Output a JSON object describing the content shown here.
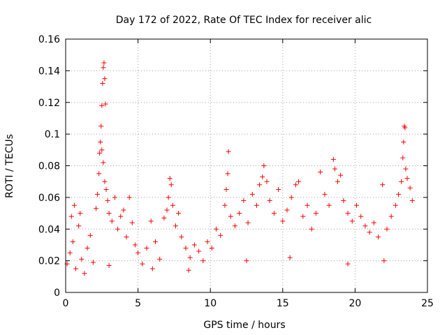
{
  "chart_data": {
    "type": "scatter",
    "title": "Day 172 of 2022, Rate Of TEC Index for receiver alic",
    "xlabel": "GPS time / hours",
    "ylabel": "ROTI / TECUs",
    "xlim": [
      0,
      25
    ],
    "ylim": [
      0,
      0.16
    ],
    "xticks": [
      0,
      5,
      10,
      15,
      20,
      25
    ],
    "xtick_labels": [
      "0",
      "5",
      "10",
      "15",
      "20",
      "25"
    ],
    "yticks": [
      0,
      0.02,
      0.04,
      0.06,
      0.08,
      0.1,
      0.12,
      0.14,
      0.16
    ],
    "ytick_labels": [
      "0",
      "0.02",
      "0.04",
      "0.06",
      "0.08",
      "0.1",
      "0.12",
      "0.14",
      "0.16"
    ],
    "grid": true,
    "marker": "+",
    "color": "#ff0000",
    "series": [
      {
        "name": "ROTI",
        "points": [
          [
            0.1,
            0.018
          ],
          [
            0.3,
            0.025
          ],
          [
            0.5,
            0.032
          ],
          [
            0.7,
            0.015
          ],
          [
            0.9,
            0.042
          ],
          [
            1.1,
            0.021
          ],
          [
            1.3,
            0.012
          ],
          [
            1.5,
            0.028
          ],
          [
            0.4,
            0.048
          ],
          [
            0.6,
            0.055
          ],
          [
            1.0,
            0.05
          ],
          [
            1.7,
            0.036
          ],
          [
            1.9,
            0.019
          ],
          [
            2.1,
            0.053
          ],
          [
            2.2,
            0.062
          ],
          [
            2.3,
            0.075
          ],
          [
            2.35,
            0.088
          ],
          [
            2.4,
            0.095
          ],
          [
            2.45,
            0.105
          ],
          [
            2.5,
            0.118
          ],
          [
            2.55,
            0.132
          ],
          [
            2.6,
            0.142
          ],
          [
            2.65,
            0.145
          ],
          [
            2.7,
            0.135
          ],
          [
            2.75,
            0.119
          ],
          [
            2.5,
            0.09
          ],
          [
            2.6,
            0.082
          ],
          [
            2.7,
            0.07
          ],
          [
            2.8,
            0.065
          ],
          [
            2.9,
            0.058
          ],
          [
            3.0,
            0.05
          ],
          [
            3.2,
            0.045
          ],
          [
            3.4,
            0.06
          ],
          [
            3.6,
            0.04
          ],
          [
            3.8,
            0.048
          ],
          [
            4.0,
            0.052
          ],
          [
            4.2,
            0.035
          ],
          [
            4.4,
            0.06
          ],
          [
            4.6,
            0.044
          ],
          [
            4.8,
            0.03
          ],
          [
            5.0,
            0.025
          ],
          [
            5.3,
            0.018
          ],
          [
            5.6,
            0.028
          ],
          [
            5.9,
            0.045
          ],
          [
            6.2,
            0.032
          ],
          [
            6.5,
            0.021
          ],
          [
            6.8,
            0.047
          ],
          [
            7.0,
            0.052
          ],
          [
            7.1,
            0.06
          ],
          [
            7.2,
            0.072
          ],
          [
            7.3,
            0.068
          ],
          [
            7.4,
            0.055
          ],
          [
            7.6,
            0.042
          ],
          [
            7.8,
            0.05
          ],
          [
            8.0,
            0.035
          ],
          [
            8.3,
            0.028
          ],
          [
            8.6,
            0.022
          ],
          [
            8.9,
            0.03
          ],
          [
            9.2,
            0.026
          ],
          [
            9.5,
            0.02
          ],
          [
            9.8,
            0.032
          ],
          [
            10.1,
            0.028
          ],
          [
            10.4,
            0.04
          ],
          [
            10.7,
            0.036
          ],
          [
            11.0,
            0.055
          ],
          [
            11.1,
            0.065
          ],
          [
            11.2,
            0.075
          ],
          [
            11.25,
            0.089
          ],
          [
            11.4,
            0.048
          ],
          [
            11.7,
            0.042
          ],
          [
            12.0,
            0.05
          ],
          [
            12.3,
            0.058
          ],
          [
            12.6,
            0.044
          ],
          [
            12.9,
            0.062
          ],
          [
            13.2,
            0.055
          ],
          [
            13.4,
            0.068
          ],
          [
            13.6,
            0.073
          ],
          [
            13.7,
            0.08
          ],
          [
            13.9,
            0.07
          ],
          [
            14.1,
            0.058
          ],
          [
            14.4,
            0.05
          ],
          [
            14.7,
            0.065
          ],
          [
            15.0,
            0.045
          ],
          [
            15.3,
            0.052
          ],
          [
            15.6,
            0.06
          ],
          [
            15.9,
            0.068
          ],
          [
            16.1,
            0.07
          ],
          [
            16.4,
            0.048
          ],
          [
            16.7,
            0.055
          ],
          [
            17.0,
            0.04
          ],
          [
            17.3,
            0.05
          ],
          [
            17.6,
            0.076
          ],
          [
            17.9,
            0.062
          ],
          [
            18.2,
            0.055
          ],
          [
            18.5,
            0.084
          ],
          [
            18.6,
            0.078
          ],
          [
            18.8,
            0.07
          ],
          [
            19.0,
            0.074
          ],
          [
            19.2,
            0.058
          ],
          [
            19.5,
            0.05
          ],
          [
            19.8,
            0.045
          ],
          [
            20.1,
            0.055
          ],
          [
            20.4,
            0.048
          ],
          [
            20.7,
            0.042
          ],
          [
            21.0,
            0.038
          ],
          [
            21.3,
            0.044
          ],
          [
            21.6,
            0.035
          ],
          [
            21.9,
            0.068
          ],
          [
            22.2,
            0.04
          ],
          [
            22.5,
            0.048
          ],
          [
            22.8,
            0.055
          ],
          [
            23.0,
            0.062
          ],
          [
            23.2,
            0.07
          ],
          [
            23.3,
            0.085
          ],
          [
            23.35,
            0.095
          ],
          [
            23.4,
            0.105
          ],
          [
            23.45,
            0.104
          ],
          [
            23.5,
            0.078
          ],
          [
            23.6,
            0.072
          ],
          [
            23.8,
            0.066
          ],
          [
            23.95,
            0.058
          ],
          [
            12.5,
            0.02
          ],
          [
            15.5,
            0.022
          ],
          [
            19.5,
            0.018
          ],
          [
            22.0,
            0.02
          ],
          [
            6.0,
            0.015
          ],
          [
            8.5,
            0.014
          ],
          [
            3.0,
            0.017
          ]
        ]
      }
    ]
  }
}
